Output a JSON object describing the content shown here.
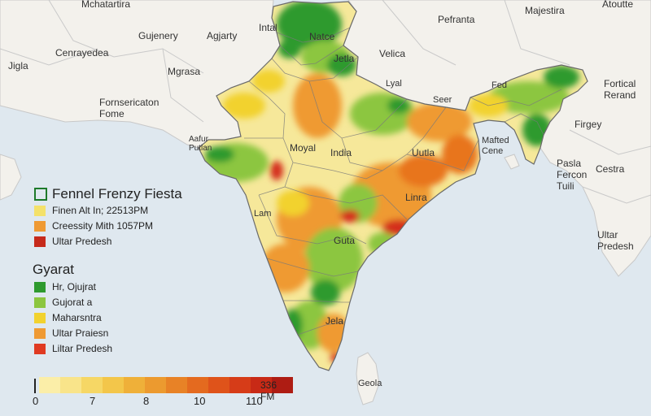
{
  "map": {
    "colors": {
      "dark_green": "#2e9a2e",
      "light_green": "#8cc63f",
      "yellow": "#f4e16a",
      "pale_yellow": "#f6e89a",
      "orange": "#ef9a33",
      "dark_orange": "#e8741f",
      "red": "#d42e1f",
      "ocean": "#dfe8ef",
      "land_outside": "#f3f1ec",
      "border": "#bbbbbb"
    },
    "region_labels": [
      "Mchatartira",
      "Gujenery",
      "Agjarty",
      "Mgrasa",
      "Cenrayedea",
      "Jigla",
      "Fornsericaton Fome",
      "Intal",
      "Natce",
      "Jetla",
      "Velica",
      "Pefranta",
      "Majestira",
      "Atoutte",
      "Lyal",
      "Seer",
      "Fed",
      "Fortical Rerand",
      "Firgey",
      "Mafted Cene",
      "Pasla Fercon Tuili",
      "Cestra",
      "Ultar Predesh",
      "Aafur Putlan",
      "Moyal",
      "India",
      "Uutla",
      "Lam",
      "Linra",
      "Guta",
      "Jela",
      "Geola"
    ]
  },
  "legend": {
    "title": "Fennel Frenzy Fiesta",
    "items": [
      {
        "label": "Finen Alt In; 22513PM",
        "color": "#f4e16a"
      },
      {
        "label": "Creessity Mith 1057PM",
        "color": "#ef9a33"
      },
      {
        "label": "Ultar Predesh",
        "color": "#c62a1b"
      }
    ],
    "subtitle": "Gyarat",
    "sub_items": [
      {
        "label": "Hr, Ojujrat",
        "color": "#2e9a2e"
      },
      {
        "label": "Gujorat a",
        "color": "#8cc63f"
      },
      {
        "label": "Maharsntra",
        "color": "#f2d22e"
      },
      {
        "label": "Ultar Praiesn",
        "color": "#ef9a33"
      },
      {
        "label": "Liltar Predesh",
        "color": "#e03a22"
      }
    ]
  },
  "scale": {
    "colors": [
      "#fbeea8",
      "#f9e48a",
      "#f6d765",
      "#f3c64a",
      "#efb039",
      "#ec9a2f",
      "#e88226",
      "#e46a1f",
      "#df531a",
      "#d63c18",
      "#c82a16",
      "#ae1c13"
    ],
    "ticks": [
      "0",
      "7",
      "8",
      "10",
      "110"
    ],
    "unit": "336 FM"
  }
}
